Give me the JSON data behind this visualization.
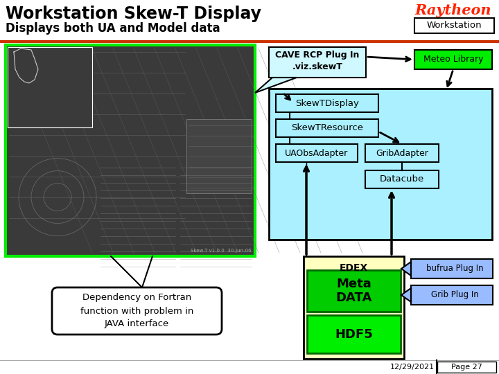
{
  "title_line1": "Workstation Skew-T Display",
  "title_line2": "Displays both UA and Model data",
  "raytheon_text": "Raytheon",
  "raytheon_color": "#ff2200",
  "workstation_box_text": "Workstation",
  "bg_color": "#ffffff",
  "header_line_color": "#cc3300",
  "cave_box_text": "CAVE RCP Plug In\n.viz.skewT",
  "meteo_box_text": "Meteo Library",
  "meteo_box_bg": "#00ee00",
  "main_panel_bg": "#aaf0ff",
  "skewt_display_text": "SkewTDisplay",
  "skewt_resource_text": "SkewTResource",
  "uaobs_text": "UAObsAdapter",
  "grib_text": "GribAdapter",
  "datacube_text": "Datacube",
  "edex_container_bg": "#ffffc0",
  "edex_label": "EDEX",
  "metadata_text": "Meta\nDATA",
  "metadata_bg": "#00cc00",
  "hdf5_text": "HDF5",
  "hdf5_bg": "#00ee00",
  "bufrua_text": "bufrua Plug In",
  "bufrua_bg": "#99bbff",
  "grib_plugin_text": "Grib Plug In",
  "grib_plugin_bg": "#99bbff",
  "dependency_text": "Dependency on Fortran\nfunction with problem in\nJAVA interface",
  "date_text": "12/29/2021",
  "page_text": "Page 27",
  "skewt_screenshot_bg": "#3a3a3a",
  "skewt_screenshot_border": "#00ee00"
}
